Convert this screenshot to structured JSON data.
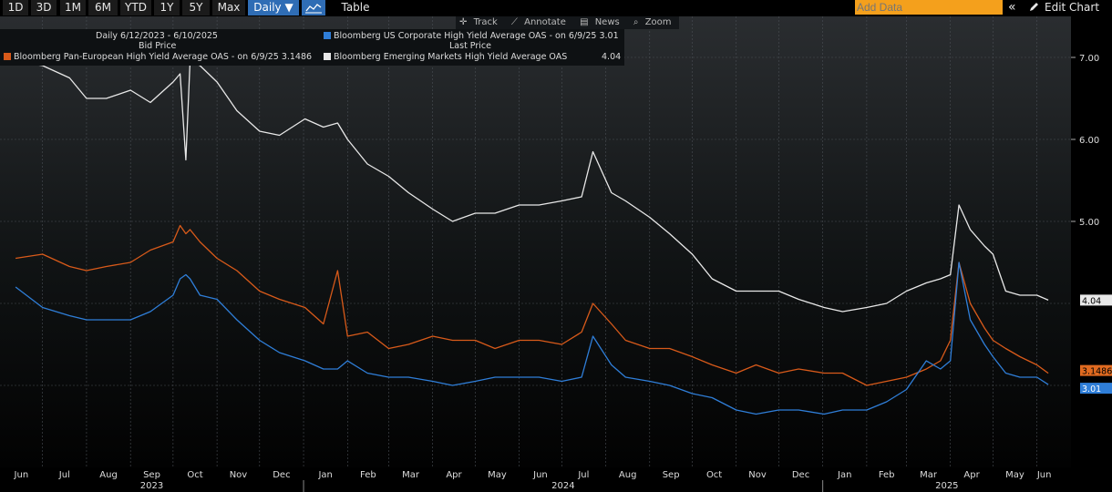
{
  "toolbar": {
    "ranges": [
      "1D",
      "3D",
      "1M",
      "6M",
      "YTD",
      "1Y",
      "5Y",
      "Max"
    ],
    "frequency": "Daily ▼",
    "chart_type_icon": "line-chart-icon",
    "table_label": "Table",
    "add_data_placeholder": "Add Data",
    "collapse_label": "«",
    "edit_chart_label": "Edit Chart",
    "edit_icon": "pencil-icon"
  },
  "tools": {
    "track_label": "Track",
    "annotate_label": "Annotate",
    "news_label": "News",
    "zoom_label": "Zoom"
  },
  "legend": {
    "range_label": "Daily 6/12/2023 - 6/10/2025",
    "bid_price_label": "Bid Price",
    "last_price_label": "Last Price",
    "us_label": "Bloomberg US Corporate High Yield Average OAS  -  on 6/9/25 3.01",
    "eu_label": "Bloomberg Pan-European High Yield Average OAS  -  on 6/9/25 3.1486",
    "em_label": "Bloomberg Emerging Markets High Yield Average OAS",
    "em_value": "4.04"
  },
  "colors": {
    "us": "#2f7ed8",
    "eu": "#d85a1a",
    "em": "#e8e8e8",
    "grid": "#4a4f55"
  },
  "chart_data": {
    "type": "line",
    "ylim": [
      2.0,
      7.5
    ],
    "y_ticks": [
      "7.00",
      "6.00",
      "5.00",
      "4.04",
      "3.1486",
      "3.01"
    ],
    "y_tick_values": [
      7.0,
      6.0,
      5.0
    ],
    "last_values": {
      "em": "4.04",
      "eu": "3.1486",
      "us": "3.01"
    },
    "x_labels": [
      "Jun",
      "Jul",
      "Aug",
      "Sep",
      "Oct",
      "Nov",
      "Dec",
      "Jan",
      "Feb",
      "Mar",
      "Apr",
      "May",
      "Jun",
      "Jul",
      "Aug",
      "Sep",
      "Oct",
      "Nov",
      "Dec",
      "Jan",
      "Feb",
      "Mar",
      "Apr",
      "May",
      "Jun"
    ],
    "year_labels": [
      "2023",
      "2024",
      "2025"
    ],
    "x": [
      "2023-06-12",
      "2023-07-01",
      "2023-07-20",
      "2023-08-01",
      "2023-08-15",
      "2023-09-01",
      "2023-09-15",
      "2023-10-01",
      "2023-10-06",
      "2023-10-10",
      "2023-10-13",
      "2023-10-20",
      "2023-11-01",
      "2023-11-15",
      "2023-12-01",
      "2023-12-15",
      "2024-01-02",
      "2024-01-15",
      "2024-01-25",
      "2024-02-01",
      "2024-02-15",
      "2024-03-01",
      "2024-03-15",
      "2024-04-01",
      "2024-04-15",
      "2024-05-01",
      "2024-05-15",
      "2024-06-01",
      "2024-06-15",
      "2024-07-01",
      "2024-07-15",
      "2024-07-23",
      "2024-08-05",
      "2024-08-15",
      "2024-09-01",
      "2024-09-15",
      "2024-10-01",
      "2024-10-15",
      "2024-11-01",
      "2024-11-15",
      "2024-12-01",
      "2024-12-15",
      "2025-01-02",
      "2025-01-15",
      "2025-02-01",
      "2025-02-15",
      "2025-03-01",
      "2025-03-15",
      "2025-03-25",
      "2025-04-01",
      "2025-04-07",
      "2025-04-15",
      "2025-04-25",
      "2025-05-01",
      "2025-05-10",
      "2025-05-20",
      "2025-06-01",
      "2025-06-09"
    ],
    "series": [
      {
        "name": "Bloomberg Emerging Markets High Yield Average OAS",
        "color_key": "em",
        "values": [
          6.95,
          6.9,
          6.75,
          6.5,
          6.5,
          6.6,
          6.45,
          6.7,
          6.8,
          5.75,
          6.95,
          6.9,
          6.7,
          6.35,
          6.1,
          6.05,
          6.25,
          6.15,
          6.2,
          6.0,
          5.7,
          5.55,
          5.35,
          5.15,
          5.0,
          5.1,
          5.1,
          5.2,
          5.2,
          5.25,
          5.3,
          5.85,
          5.35,
          5.25,
          5.05,
          4.85,
          4.6,
          4.3,
          4.15,
          4.15,
          4.15,
          4.05,
          3.95,
          3.9,
          3.95,
          4.0,
          4.15,
          4.25,
          4.3,
          4.35,
          5.2,
          4.9,
          4.7,
          4.6,
          4.15,
          4.1,
          4.1,
          4.04
        ]
      },
      {
        "name": "Bloomberg Pan-European High Yield Average OAS",
        "color_key": "eu",
        "values": [
          4.55,
          4.6,
          4.45,
          4.4,
          4.45,
          4.5,
          4.65,
          4.75,
          4.95,
          4.85,
          4.9,
          4.75,
          4.55,
          4.4,
          4.15,
          4.05,
          3.95,
          3.75,
          4.4,
          3.6,
          3.65,
          3.45,
          3.5,
          3.6,
          3.55,
          3.55,
          3.45,
          3.55,
          3.55,
          3.5,
          3.65,
          4.0,
          3.75,
          3.55,
          3.45,
          3.45,
          3.35,
          3.25,
          3.15,
          3.25,
          3.15,
          3.2,
          3.15,
          3.15,
          3.0,
          3.05,
          3.1,
          3.2,
          3.3,
          3.55,
          4.5,
          4.0,
          3.7,
          3.55,
          3.45,
          3.35,
          3.25,
          3.1486
        ]
      },
      {
        "name": "Bloomberg US Corporate High Yield Average OAS",
        "color_key": "us",
        "values": [
          4.2,
          3.95,
          3.85,
          3.8,
          3.8,
          3.8,
          3.9,
          4.1,
          4.3,
          4.35,
          4.3,
          4.1,
          4.05,
          3.8,
          3.55,
          3.4,
          3.3,
          3.2,
          3.2,
          3.3,
          3.15,
          3.1,
          3.1,
          3.05,
          3.0,
          3.05,
          3.1,
          3.1,
          3.1,
          3.05,
          3.1,
          3.6,
          3.25,
          3.1,
          3.05,
          3.0,
          2.9,
          2.85,
          2.7,
          2.65,
          2.7,
          2.7,
          2.65,
          2.7,
          2.7,
          2.8,
          2.95,
          3.3,
          3.2,
          3.3,
          4.5,
          3.8,
          3.5,
          3.35,
          3.15,
          3.1,
          3.1,
          3.01
        ]
      }
    ]
  }
}
